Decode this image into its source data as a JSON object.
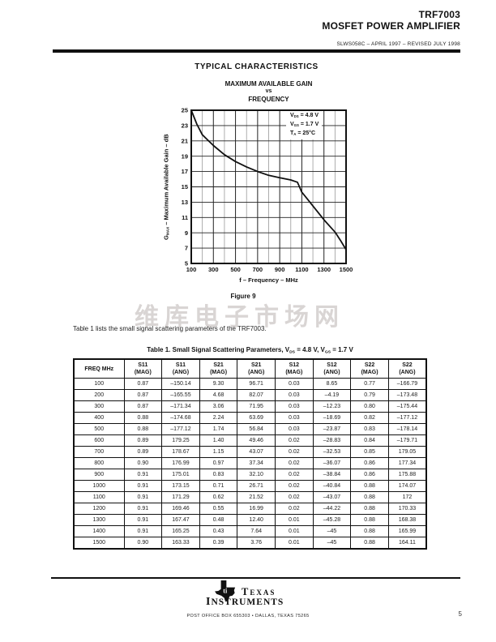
{
  "page": {
    "number": "5"
  },
  "colors": {
    "text": "#111111",
    "grid_major": "#222222",
    "grid_minor": "#999999",
    "watermark": "#d9d5d4"
  },
  "header": {
    "part": "TRF7003",
    "subtitle": "MOSFET POWER AMPLIFIER",
    "doc_code": "SLWS058C – APRIL 1997 – REVISED JULY 1998"
  },
  "section_title": "TYPICAL CHARACTERISTICS",
  "chart_data": {
    "type": "line",
    "title": [
      "MAXIMUM AVAILABLE GAIN",
      "vs",
      "FREQUENCY"
    ],
    "xlabel": "f – Frequency – MHz",
    "ylabel_parts": [
      {
        "text": "G"
      },
      {
        "sub": "MAX"
      },
      {
        "text": " – Maximum Available Gain – dB"
      }
    ],
    "xlim": [
      100,
      1500
    ],
    "ylim": [
      5,
      25
    ],
    "xticks": [
      100,
      300,
      500,
      700,
      900,
      1100,
      1300,
      1500
    ],
    "yticks": [
      25,
      23,
      21,
      19,
      17,
      15,
      13,
      11,
      9,
      7,
      5
    ],
    "grid": {
      "x_minor_step": 100,
      "y_step": 2,
      "legend": "none"
    },
    "conditions": [
      {
        "base": "V",
        "sub": "DS",
        "rest": " = 4.8 V"
      },
      {
        "base": "V",
        "sub": "GS",
        "rest": " = 1.7 V"
      },
      {
        "base": "T",
        "sub": "A",
        "rest": " = 25°C"
      }
    ],
    "series": [
      {
        "name": "GMAX",
        "x": [
          100,
          150,
          200,
          300,
          400,
          500,
          600,
          700,
          800,
          900,
          1000,
          1060,
          1100,
          1150,
          1200,
          1250,
          1300,
          1350,
          1400,
          1450,
          1500
        ],
        "y": [
          25,
          23.2,
          21.8,
          20.4,
          19.2,
          18.3,
          17.6,
          17.0,
          16.5,
          16.2,
          15.9,
          15.6,
          14.3,
          13.4,
          12.5,
          11.6,
          10.7,
          9.9,
          9.1,
          8.0,
          6.8
        ]
      }
    ]
  },
  "figure_caption": "Figure 9",
  "watermark": "维库电子市场网",
  "paragraph": "Table 1 lists the small signal scattering parameters of the TRF7003.",
  "table": {
    "title_parts": [
      {
        "text": "Table 1. Small Signal Scattering Parameters, V"
      },
      {
        "sub": "DS"
      },
      {
        "text": " = 4.8 V, V"
      },
      {
        "sub": "GS"
      },
      {
        "text": " = 1.7 V"
      }
    ],
    "freq_header": "FREQ MHz",
    "columns": [
      {
        "param": "S11",
        "kind": "(MAG)"
      },
      {
        "param": "S11",
        "kind": "(ANG)"
      },
      {
        "param": "S21",
        "kind": "(MAG)"
      },
      {
        "param": "S21",
        "kind": "(ANG)"
      },
      {
        "param": "S12",
        "kind": "(MAG)"
      },
      {
        "param": "S12",
        "kind": "(ANG)"
      },
      {
        "param": "S22",
        "kind": "(MAG)"
      },
      {
        "param": "S22",
        "kind": "(ANG)"
      }
    ],
    "rows": [
      [
        "100",
        "0.87",
        "–150.14",
        "9.30",
        "96.71",
        "0.03",
        "8.65",
        "0.77",
        "–166.79"
      ],
      [
        "200",
        "0.87",
        "–165.55",
        "4.68",
        "82.07",
        "0.03",
        "–4.19",
        "0.79",
        "–173.48"
      ],
      [
        "300",
        "0.87",
        "–171.34",
        "3.06",
        "71.95",
        "0.03",
        "–12.23",
        "0.80",
        "–175.44"
      ],
      [
        "400",
        "0.88",
        "–174.68",
        "2.24",
        "63.69",
        "0.03",
        "–18.69",
        "0.82",
        "–177.12"
      ],
      [
        "500",
        "0.88",
        "–177.12",
        "1.74",
        "56.84",
        "0.03",
        "–23.87",
        "0.83",
        "–178.14"
      ],
      [
        "600",
        "0.89",
        "179.25",
        "1.40",
        "49.46",
        "0.02",
        "–28.83",
        "0.84",
        "–179.71"
      ],
      [
        "700",
        "0.89",
        "178.67",
        "1.15",
        "43.07",
        "0.02",
        "–32.53",
        "0.85",
        "179.05"
      ],
      [
        "800",
        "0.90",
        "176.99",
        "0.97",
        "37.34",
        "0.02",
        "–36.07",
        "0.86",
        "177.34"
      ],
      [
        "900",
        "0.91",
        "175.01",
        "0.83",
        "32.10",
        "0.02",
        "–38.84",
        "0.86",
        "175.88"
      ],
      [
        "1000",
        "0.91",
        "173.15",
        "0.71",
        "26.71",
        "0.02",
        "–40.84",
        "0.88",
        "174.07"
      ],
      [
        "1100",
        "0.91",
        "171.29",
        "0.62",
        "21.52",
        "0.02",
        "–43.07",
        "0.88",
        "172"
      ],
      [
        "1200",
        "0.91",
        "169.46",
        "0.55",
        "16.99",
        "0.02",
        "–44.22",
        "0.88",
        "170.33"
      ],
      [
        "1300",
        "0.91",
        "167.47",
        "0.48",
        "12.40",
        "0.01",
        "–45.28",
        "0.88",
        "168.38"
      ],
      [
        "1400",
        "0.91",
        "165.25",
        "0.43",
        "7.64",
        "0.01",
        "–45",
        "0.88",
        "165.99"
      ],
      [
        "1500",
        "0.90",
        "163.33",
        "0.39",
        "3.76",
        "0.01",
        "–45",
        "0.88",
        "164.11"
      ]
    ]
  },
  "footer": {
    "logo_icon": "texas-map-icon",
    "brand_line1": "TEXAS",
    "brand_line2": "INSTRUMENTS",
    "address": "POST OFFICE BOX 655303 • DALLAS, TEXAS 75265"
  }
}
